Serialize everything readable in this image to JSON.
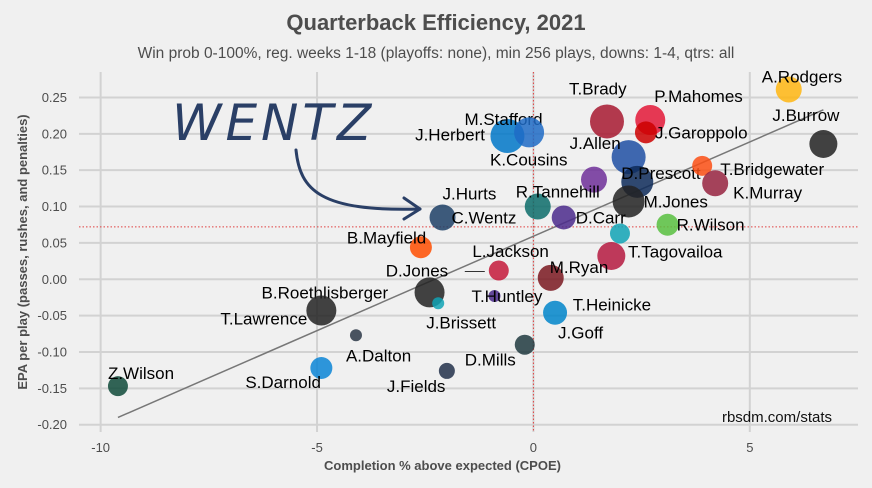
{
  "chart_data": {
    "type": "scatter",
    "title": "Quarterback Efficiency, 2021",
    "subtitle": "Win prob 0-100%, reg. weeks 1-18 (playoffs: none), min 256 plays, downs: 1-4, qtrs: all",
    "xlabel": "Completion % above expected (CPOE)",
    "ylabel": "EPA per play (passes, rushes, and penalties)",
    "xlim": [
      -10.5,
      7.5
    ],
    "ylim": [
      -0.21,
      0.285
    ],
    "xticks": [
      -10,
      -5,
      0,
      5
    ],
    "xtick_labels": [
      "-10",
      "-5",
      "0",
      "5"
    ],
    "yticks": [
      -0.2,
      -0.15,
      -0.1,
      -0.05,
      0.0,
      0.05,
      0.1,
      0.15,
      0.2,
      0.25
    ],
    "ytick_labels": [
      "-0.20",
      "-0.15",
      "-0.10",
      "-0.05",
      "0.00",
      "0.05",
      "0.10",
      "0.15",
      "0.20",
      "0.25"
    ],
    "grid": true,
    "mean_x": 0.0,
    "mean_y": 0.072,
    "trend_line": {
      "x": [
        -9.6,
        6.7
      ],
      "y": [
        -0.19,
        0.233
      ]
    },
    "credit": "rbsdm.com/stats",
    "annotation": "WENTZ",
    "points": [
      {
        "name": "A.Rodgers",
        "x": 5.9,
        "y": 0.261,
        "color": "#ffb612",
        "size": 13
      },
      {
        "name": "J.Burrow",
        "x": 6.7,
        "y": 0.186,
        "color": "#222222",
        "size": 14
      },
      {
        "name": "P.Mahomes",
        "x": 2.7,
        "y": 0.219,
        "color": "#e31837",
        "size": 15
      },
      {
        "name": "T.Brady",
        "x": 1.7,
        "y": 0.217,
        "color": "#a71930",
        "size": 17
      },
      {
        "name": "J.Garoppolo",
        "x": 2.6,
        "y": 0.202,
        "color": "#cc0000",
        "size": 11
      },
      {
        "name": "M.Stafford",
        "x": -0.6,
        "y": 0.197,
        "color": "#0077c8",
        "size": 17
      },
      {
        "name": "J.Herbert",
        "x": -0.1,
        "y": 0.202,
        "color": "#1e6bc5",
        "size": 15
      },
      {
        "name": "J.Allen",
        "x": 2.2,
        "y": 0.168,
        "color": "#1f4fa3",
        "size": 17
      },
      {
        "name": "D.Prescott",
        "x": 2.4,
        "y": 0.134,
        "color": "#0d2a59",
        "size": 16
      },
      {
        "name": "T.Bridgewater",
        "x": 3.9,
        "y": 0.156,
        "color": "#fb4f14",
        "size": 10
      },
      {
        "name": "K.Murray",
        "x": 4.2,
        "y": 0.132,
        "color": "#97233f",
        "size": 13
      },
      {
        "name": "K.Cousins",
        "x": 1.4,
        "y": 0.137,
        "color": "#6f2f99",
        "size": 13
      },
      {
        "name": "M.Jones",
        "x": 2.2,
        "y": 0.107,
        "color": "#222222",
        "size": 16
      },
      {
        "name": "R.Tannehill",
        "x": 0.1,
        "y": 0.1,
        "color": "#0c6c6a",
        "size": 13
      },
      {
        "name": "D.Carr",
        "x": 0.7,
        "y": 0.085,
        "color": "#4b2a8c",
        "size": 12
      },
      {
        "name": "J.Hurts",
        "x": -2.1,
        "y": 0.085,
        "color": "#1d3f66",
        "size": 13
      },
      {
        "name": "C.Wentz",
        "x": -2.1,
        "y": 0.085,
        "color": "#1d3f66",
        "size": 0
      },
      {
        "name": "R.Wilson",
        "x": 3.1,
        "y": 0.075,
        "color": "#58c03f",
        "size": 11
      },
      {
        "name": "T.Tagovailoa",
        "x": 2.0,
        "y": 0.063,
        "color": "#10a3b5",
        "size": 10
      },
      {
        "name": "B.Mayfield",
        "x": -2.6,
        "y": 0.044,
        "color": "#ff4d00",
        "size": 11
      },
      {
        "name": "L.Jackson",
        "x": 1.8,
        "y": 0.032,
        "color": "#b5193f",
        "size": 14
      },
      {
        "name": "D.Jones",
        "x": -0.8,
        "y": 0.012,
        "color": "#c4193a",
        "size": 10
      },
      {
        "name": "M.Ryan",
        "x": 0.4,
        "y": 0.002,
        "color": "#7a1820",
        "size": 13
      },
      {
        "name": "T.Huntley",
        "x": -0.9,
        "y": -0.023,
        "color": "#4b2a8c",
        "size": 6
      },
      {
        "name": "T.Heinicke",
        "x": 0.4,
        "y": -0.014,
        "color": "#7a1820",
        "size": 0
      },
      {
        "name": "B.Roethlisberger",
        "x": -2.4,
        "y": -0.018,
        "color": "#222222",
        "size": 15
      },
      {
        "name": "J.Brissett",
        "x": -2.2,
        "y": -0.033,
        "color": "#10a3b5",
        "size": 6
      },
      {
        "name": "T.Lawrence",
        "x": -4.9,
        "y": -0.043,
        "color": "#222222",
        "size": 15
      },
      {
        "name": "J.Goff",
        "x": 0.5,
        "y": -0.046,
        "color": "#0085ca",
        "size": 12
      },
      {
        "name": "A.Dalton",
        "x": -4.1,
        "y": -0.077,
        "color": "#2b3747",
        "size": 6
      },
      {
        "name": "D.Mills",
        "x": -0.2,
        "y": -0.09,
        "color": "#203a40",
        "size": 10
      },
      {
        "name": "S.Darnold",
        "x": -4.9,
        "y": -0.122,
        "color": "#0a85d6",
        "size": 11
      },
      {
        "name": "J.Fields",
        "x": -2.0,
        "y": -0.126,
        "color": "#22304a",
        "size": 8
      },
      {
        "name": "Z.Wilson",
        "x": -9.6,
        "y": -0.147,
        "color": "#0f4a3a",
        "size": 10
      }
    ]
  }
}
